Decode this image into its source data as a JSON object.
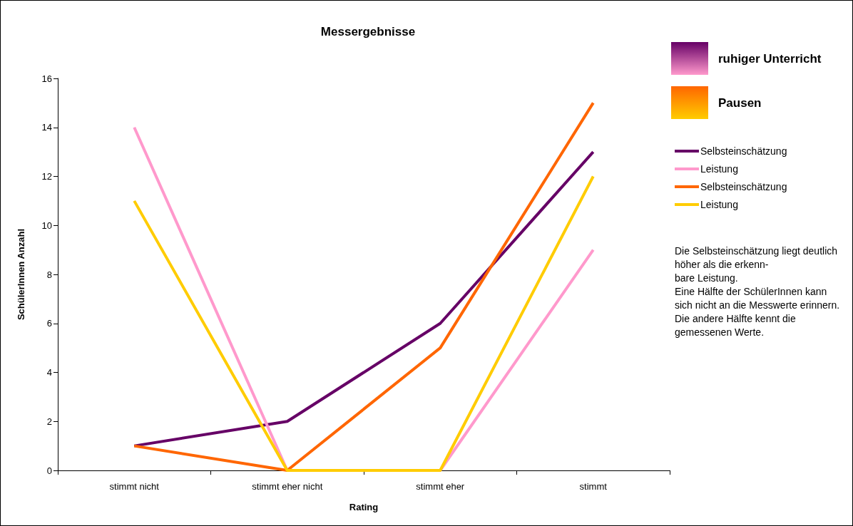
{
  "chart_data": {
    "type": "line",
    "title": "Messergebnisse",
    "xlabel": "Rating",
    "ylabel": "SchülerInnen Anzahl",
    "categories": [
      "stimmt nicht",
      "stimmt eher nicht",
      "stimmt eher",
      "stimmt"
    ],
    "series": [
      {
        "name": "Selbsteinschätzung",
        "color": "#660066",
        "values": [
          1,
          2,
          6,
          13
        ]
      },
      {
        "name": "Leistung",
        "color": "#ff99cc",
        "values": [
          14,
          0,
          0,
          9
        ]
      },
      {
        "name": "Selbsteinschätzung",
        "color": "#ff6600",
        "values": [
          1,
          0,
          5,
          15
        ]
      },
      {
        "name": "Leistung",
        "color": "#ffcc00",
        "values": [
          11,
          0,
          0,
          12
        ]
      }
    ],
    "ylim": [
      0,
      16
    ],
    "yticks": [
      0,
      2,
      4,
      6,
      8,
      10,
      12,
      14,
      16
    ],
    "grid": false,
    "legend": "right",
    "marker": "none",
    "line_style": "solid",
    "annotations": [
      "ruhiger Unterricht",
      "Pausen",
      "Die Selbsteinschätzung liegt deutlich höher als die erkenn-\nbare Leistung.\nEine Hälfte der SchülerInnen kann sich nicht an die Messwerte erinnern.  Die andere Hälfte kennt die gemessenen Werte."
    ]
  }
}
